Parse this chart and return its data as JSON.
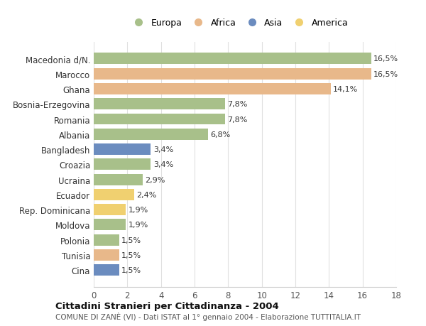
{
  "categories": [
    "Cina",
    "Tunisia",
    "Polonia",
    "Moldova",
    "Rep. Dominicana",
    "Ecuador",
    "Ucraina",
    "Croazia",
    "Bangladesh",
    "Albania",
    "Romania",
    "Bosnia-Erzegovina",
    "Ghana",
    "Marocco",
    "Macedonia d/N."
  ],
  "values": [
    1.5,
    1.5,
    1.5,
    1.9,
    1.9,
    2.4,
    2.9,
    3.4,
    3.4,
    6.8,
    7.8,
    7.8,
    14.1,
    16.5,
    16.5
  ],
  "labels": [
    "1,5%",
    "1,5%",
    "1,5%",
    "1,9%",
    "1,9%",
    "2,4%",
    "2,9%",
    "3,4%",
    "3,4%",
    "6,8%",
    "7,8%",
    "7,8%",
    "14,1%",
    "16,5%",
    "16,5%"
  ],
  "continent": [
    "Asia",
    "Africa",
    "Europa",
    "Europa",
    "America",
    "America",
    "Europa",
    "Europa",
    "Asia",
    "Europa",
    "Europa",
    "Europa",
    "Africa",
    "Africa",
    "Europa"
  ],
  "colors": {
    "Europa": "#a8c08a",
    "Africa": "#e8b88a",
    "Asia": "#6b8cbf",
    "America": "#f0d070"
  },
  "title": "Cittadini Stranieri per Cittadinanza - 2004",
  "subtitle": "COMUNE DI ZANÈ (VI) - Dati ISTAT al 1° gennaio 2004 - Elaborazione TUTTITALIA.IT",
  "xlim": [
    0,
    18
  ],
  "xticks": [
    0,
    2,
    4,
    6,
    8,
    10,
    12,
    14,
    16,
    18
  ],
  "background_color": "#ffffff",
  "grid_color": "#e0e0e0",
  "bar_height": 0.75,
  "legend_order": [
    "Europa",
    "Africa",
    "Asia",
    "America"
  ]
}
